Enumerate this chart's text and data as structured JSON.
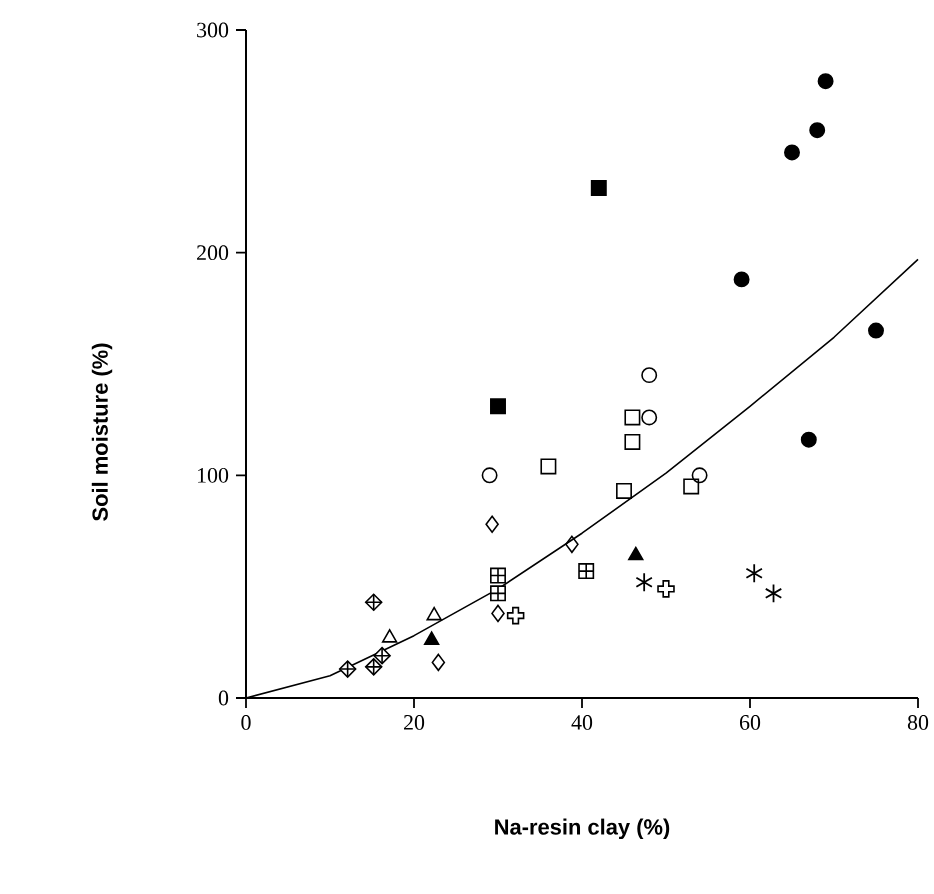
{
  "chart_data": {
    "type": "scatter",
    "xlabel": "Na-resin clay (%)",
    "ylabel": "Soil moisture (%)",
    "xlim": [
      0,
      80
    ],
    "ylim": [
      0,
      300
    ],
    "xticks": [
      0,
      20,
      40,
      60,
      80
    ],
    "yticks": [
      0,
      100,
      200,
      300
    ],
    "grid": false,
    "series": [
      {
        "color": "#000000",
        "marker": "circle-filled",
        "x": [
          69,
          68,
          65,
          59,
          75,
          67
        ],
        "values": [
          277,
          255,
          245,
          188,
          165,
          116
        ]
      },
      {
        "color": "#000000",
        "marker": "square-filled",
        "x": [
          42,
          30
        ],
        "values": [
          229,
          131
        ]
      },
      {
        "color": "#000000",
        "marker": "circle",
        "x": [
          29,
          48,
          48,
          54
        ],
        "values": [
          100,
          145,
          126,
          100
        ]
      },
      {
        "color": "#000000",
        "marker": "square",
        "x": [
          36,
          46,
          46,
          45,
          53
        ],
        "values": [
          104,
          126,
          115,
          93,
          95
        ]
      },
      {
        "color": "#000000",
        "marker": "diamond",
        "x": [
          29.3,
          38.8,
          30,
          22.9
        ],
        "values": [
          78,
          69,
          38,
          16
        ]
      },
      {
        "color": "#000000",
        "marker": "square-plus",
        "x": [
          30,
          30,
          40.5
        ],
        "values": [
          55,
          47,
          57
        ]
      },
      {
        "color": "#000000",
        "marker": "diamond-plus",
        "x": [
          15.2,
          12.1,
          15.2,
          16.2
        ],
        "values": [
          43,
          13,
          14,
          19
        ]
      },
      {
        "color": "#000000",
        "marker": "triangle",
        "x": [
          17.1,
          22.4
        ],
        "values": [
          27,
          37
        ]
      },
      {
        "color": "#000000",
        "marker": "triangle-filled",
        "x": [
          46.4,
          22.1
        ],
        "values": [
          64,
          26
        ]
      },
      {
        "color": "#000000",
        "marker": "cross",
        "x": [
          47.4,
          60.5,
          62.8
        ],
        "values": [
          52,
          56,
          47
        ]
      },
      {
        "color": "#000000",
        "marker": "plus",
        "x": [
          32.1,
          50
        ],
        "values": [
          37,
          49
        ]
      },
      {
        "type": "line",
        "color": "#000000",
        "marker": "none",
        "line_style": "solid",
        "x": [
          0,
          10,
          20,
          30,
          40,
          50,
          60,
          70,
          80
        ],
        "values": [
          0,
          10,
          28,
          49,
          74,
          101,
          131,
          162,
          197
        ]
      }
    ]
  }
}
